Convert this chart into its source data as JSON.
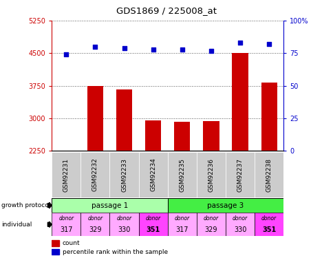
{
  "title": "GDS1869 / 225008_at",
  "samples": [
    "GSM92231",
    "GSM92232",
    "GSM92233",
    "GSM92234",
    "GSM92235",
    "GSM92236",
    "GSM92237",
    "GSM92238"
  ],
  "counts": [
    2255,
    3740,
    3660,
    2960,
    2920,
    2930,
    4510,
    3820
  ],
  "percentiles": [
    74,
    80,
    79,
    78,
    78,
    77,
    83,
    82
  ],
  "ylim_left": [
    2250,
    5250
  ],
  "ylim_right": [
    0,
    100
  ],
  "yticks_left": [
    2250,
    3000,
    3750,
    4500,
    5250
  ],
  "yticks_right": [
    0,
    25,
    50,
    75,
    100
  ],
  "ytick_labels_right": [
    "0",
    "25",
    "50",
    "75",
    "100%"
  ],
  "bar_color": "#cc0000",
  "dot_color": "#0000cc",
  "passage_colors": [
    "#aaffaa",
    "#44ee44"
  ],
  "passage_labels": [
    "passage 1",
    "passage 3"
  ],
  "individual_colors_normal": "#ffaaff",
  "individual_colors_bold": "#ff44ff",
  "individual_labels_top": [
    "donor",
    "donor",
    "donor",
    "donor",
    "donor",
    "donor",
    "donor",
    "donor"
  ],
  "individual_labels_bottom": [
    "317",
    "329",
    "330",
    "351",
    "317",
    "329",
    "330",
    "351"
  ],
  "individual_bold": [
    false,
    false,
    false,
    true,
    false,
    false,
    false,
    true
  ],
  "grid_color": "#555555",
  "bg_color": "#ffffff",
  "left_axis_color": "#cc0000",
  "right_axis_color": "#0000cc",
  "sample_bg_color": "#cccccc"
}
